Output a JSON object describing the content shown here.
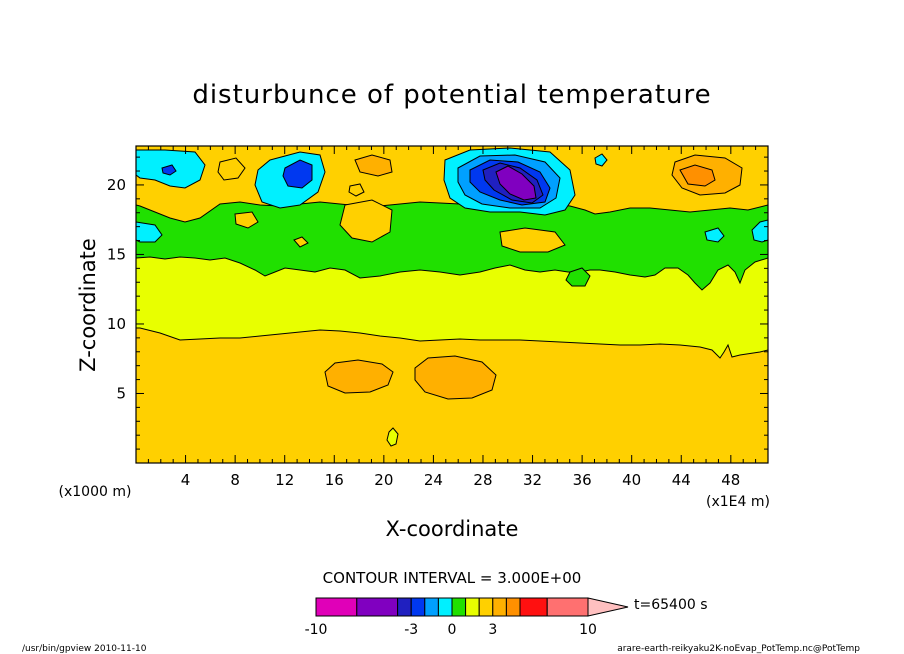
{
  "chart_data": {
    "type": "heatmap",
    "subtype": "filled-contour",
    "title": "disturbunce of potential temperature",
    "xlabel": "X-coordinate",
    "ylabel": "Z-coordinate",
    "x_unit_label": "(x1E4 m)",
    "y_unit_label": "(x1000 m)",
    "x_ticks": [
      "4",
      "8",
      "12",
      "16",
      "20",
      "24",
      "28",
      "32",
      "36",
      "40",
      "44",
      "48"
    ],
    "y_ticks": [
      "5",
      "10",
      "15",
      "20"
    ],
    "x_tick_values": [
      4,
      8,
      12,
      16,
      20,
      24,
      28,
      32,
      36,
      40,
      44,
      48
    ],
    "y_tick_values": [
      5,
      10,
      15,
      20
    ],
    "xlim": [
      0,
      51
    ],
    "ylim": [
      0,
      22.8
    ],
    "contour_interval_label": "CONTOUR INTERVAL = 3.000E+00",
    "time_label": "t=65400 s",
    "colorbar": {
      "tick_labels": [
        "-10",
        "-3",
        "0",
        "3",
        "10"
      ],
      "tick_values": [
        -10,
        -3,
        0,
        3,
        10
      ],
      "range": [
        -10,
        10
      ],
      "bins": [
        {
          "from": -10,
          "to": -7,
          "color": "#e000b8"
        },
        {
          "from": -7,
          "to": -4,
          "color": "#8000c0"
        },
        {
          "from": -4,
          "to": -3,
          "color": "#2020c0"
        },
        {
          "from": -3,
          "to": -2,
          "color": "#0038f0"
        },
        {
          "from": -2,
          "to": -1,
          "color": "#00a0ff"
        },
        {
          "from": -1,
          "to": 0,
          "color": "#00f0ff"
        },
        {
          "from": 0,
          "to": 1,
          "color": "#20e000"
        },
        {
          "from": 1,
          "to": 2,
          "color": "#e8ff00"
        },
        {
          "from": 2,
          "to": 3,
          "color": "#ffd000"
        },
        {
          "from": 3,
          "to": 4,
          "color": "#ffb000"
        },
        {
          "from": 4,
          "to": 5,
          "color": "#ff9000"
        },
        {
          "from": 5,
          "to": 7,
          "color": "#ff1010"
        },
        {
          "from": 7,
          "to": 10,
          "color": "#ff7070"
        }
      ],
      "overflow_color": "#ffc0c0"
    },
    "levels": [
      {
        "name": "positive-2",
        "color": "#ffd000",
        "z_range": [
          0,
          9.6
        ]
      },
      {
        "name": "positive-1",
        "color": "#e8ff00",
        "z_range": [
          9.6,
          14.8
        ]
      },
      {
        "name": "near-zero",
        "color": "#20e000",
        "z_range": [
          14.8,
          18.5
        ]
      },
      {
        "name": "mixed-top",
        "color": "#ffd000",
        "z_range": [
          18.5,
          22.8
        ]
      }
    ],
    "grid": false,
    "legend": "bottom-center"
  },
  "footer": {
    "left": "/usr/bin/gpview  2010-11-10",
    "right": "arare-earth-reikyaku2K-noEvap_PotTemp.nc@PotTemp"
  },
  "colors": {
    "background": "#ffffff",
    "axis": "#000000"
  }
}
